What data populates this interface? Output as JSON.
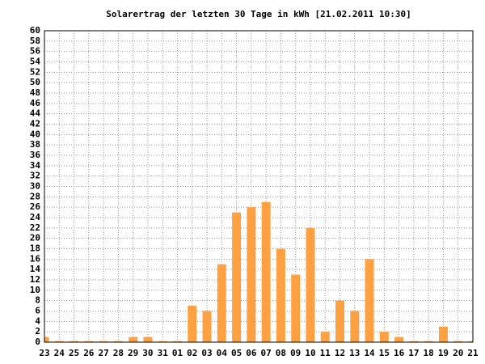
{
  "chart_data": {
    "type": "bar",
    "title": "Solarertrag der letzten 30 Tage in kWh [21.02.2011 10:30]",
    "categories": [
      "23",
      "24",
      "25",
      "26",
      "27",
      "28",
      "29",
      "30",
      "31",
      "01",
      "02",
      "03",
      "04",
      "05",
      "06",
      "07",
      "08",
      "09",
      "10",
      "11",
      "12",
      "13",
      "14",
      "15",
      "16",
      "17",
      "18",
      "19",
      "20",
      "21"
    ],
    "values": [
      1,
      0.2,
      0.2,
      0.2,
      0.2,
      0.2,
      1,
      1,
      0.2,
      0.2,
      7,
      6,
      15,
      25,
      26,
      27,
      18,
      13,
      22,
      2,
      8,
      6,
      16,
      2,
      1,
      0.2,
      0.2,
      3,
      0.2,
      0.2
    ],
    "color": "#ffa042",
    "ylim": [
      0,
      60
    ],
    "yticks": [
      0,
      2,
      4,
      6,
      8,
      10,
      12,
      14,
      16,
      18,
      20,
      22,
      24,
      26,
      28,
      30,
      32,
      34,
      36,
      38,
      40,
      42,
      44,
      46,
      48,
      50,
      52,
      54,
      56,
      58,
      60
    ],
    "grid": true
  }
}
